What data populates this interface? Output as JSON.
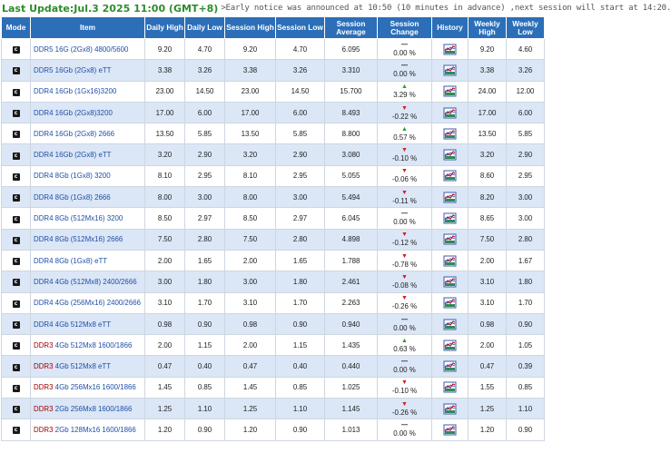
{
  "header": {
    "last_update": "Last Update:Jul.3 2025 11:00 (GMT+8)",
    "notice": ">Early notice was announced at 10:50 (10 minutes in advance) ,next session will start at 14:20."
  },
  "columns": [
    "Mode",
    "Item",
    "Daily High",
    "Daily Low",
    "Session High",
    "Session Low",
    "Session Average",
    "Session Change",
    "History",
    "Weekly High",
    "Weekly Low"
  ],
  "icons": {
    "mode": "c-icon",
    "history": "chart-icon"
  },
  "colors": {
    "header_bg": "#2c6fb8",
    "row_alt": "#dbe6f6",
    "up": "#2e9b2e",
    "down": "#d61f1f",
    "title": "#2e8b2e"
  },
  "rows": [
    {
      "mark": "",
      "item": "DDR5 16G (2Gx8) 4800/5600",
      "daily_high": "9.20",
      "daily_low": "4.70",
      "session_high": "9.20",
      "session_low": "4.70",
      "session_avg": "6.095",
      "dir": "eq",
      "change": "0.00 %",
      "weekly_high": "9.20",
      "weekly_low": "4.60"
    },
    {
      "mark": "",
      "item": "DDR5 16Gb (2Gx8) eTT",
      "daily_high": "3.38",
      "daily_low": "3.26",
      "session_high": "3.38",
      "session_low": "3.26",
      "session_avg": "3.310",
      "dir": "eq",
      "change": "0.00 %",
      "weekly_high": "3.38",
      "weekly_low": "3.26"
    },
    {
      "mark": "",
      "item": "DDR4 16Gb (1Gx16)3200",
      "daily_high": "23.00",
      "daily_low": "14.50",
      "session_high": "23.00",
      "session_low": "14.50",
      "session_avg": "15.700",
      "dir": "up",
      "change": "3.29 %",
      "weekly_high": "24.00",
      "weekly_low": "12.00"
    },
    {
      "mark": "",
      "item": "DDR4 16Gb (2Gx8)3200",
      "daily_high": "17.00",
      "daily_low": "6.00",
      "session_high": "17.00",
      "session_low": "6.00",
      "session_avg": "8.493",
      "dir": "dn",
      "change": "-0.22 %",
      "weekly_high": "17.00",
      "weekly_low": "6.00"
    },
    {
      "mark": "",
      "item": "DDR4 16Gb (2Gx8) 2666",
      "daily_high": "13.50",
      "daily_low": "5.85",
      "session_high": "13.50",
      "session_low": "5.85",
      "session_avg": "8.800",
      "dir": "up",
      "change": "0.57 %",
      "weekly_high": "13.50",
      "weekly_low": "5.85"
    },
    {
      "mark": "",
      "item": "DDR4 16Gb (2Gx8) eTT",
      "daily_high": "3.20",
      "daily_low": "2.90",
      "session_high": "3.20",
      "session_low": "2.90",
      "session_avg": "3.080",
      "dir": "dn",
      "change": "-0.10 %",
      "weekly_high": "3.20",
      "weekly_low": "2.90"
    },
    {
      "mark": "",
      "item": "DDR4 8Gb (1Gx8) 3200",
      "daily_high": "8.10",
      "daily_low": "2.95",
      "session_high": "8.10",
      "session_low": "2.95",
      "session_avg": "5.055",
      "dir": "dn",
      "change": "-0.06 %",
      "weekly_high": "8.60",
      "weekly_low": "2.95"
    },
    {
      "mark": "",
      "item": "DDR4 8Gb (1Gx8) 2666",
      "daily_high": "8.00",
      "daily_low": "3.00",
      "session_high": "8.00",
      "session_low": "3.00",
      "session_avg": "5.494",
      "dir": "dn",
      "change": "-0.11 %",
      "weekly_high": "8.20",
      "weekly_low": "3.00"
    },
    {
      "mark": "",
      "item": "DDR4 8Gb (512Mx16) 3200",
      "daily_high": "8.50",
      "daily_low": "2.97",
      "session_high": "8.50",
      "session_low": "2.97",
      "session_avg": "6.045",
      "dir": "eq",
      "change": "0.00 %",
      "weekly_high": "8.65",
      "weekly_low": "3.00"
    },
    {
      "mark": "",
      "item": "DDR4 8Gb (512Mx16) 2666",
      "daily_high": "7.50",
      "daily_low": "2.80",
      "session_high": "7.50",
      "session_low": "2.80",
      "session_avg": "4.898",
      "dir": "dn",
      "change": "-0.12 %",
      "weekly_high": "7.50",
      "weekly_low": "2.80"
    },
    {
      "mark": "",
      "item": "DDR4 8Gb (1Gx8) eTT",
      "daily_high": "2.00",
      "daily_low": "1.65",
      "session_high": "2.00",
      "session_low": "1.65",
      "session_avg": "1.788",
      "dir": "dn",
      "change": "-0.78 %",
      "weekly_high": "2.00",
      "weekly_low": "1.67"
    },
    {
      "mark": "",
      "item": "DDR4 4Gb (512Mx8) 2400/2666",
      "daily_high": "3.00",
      "daily_low": "1.80",
      "session_high": "3.00",
      "session_low": "1.80",
      "session_avg": "2.461",
      "dir": "dn",
      "change": "-0.08 %",
      "weekly_high": "3.10",
      "weekly_low": "1.80"
    },
    {
      "mark": "",
      "item": "DDR4 4Gb (256Mx16) 2400/2666",
      "daily_high": "3.10",
      "daily_low": "1.70",
      "session_high": "3.10",
      "session_low": "1.70",
      "session_avg": "2.263",
      "dir": "dn",
      "change": "-0.26 %",
      "weekly_high": "3.10",
      "weekly_low": "1.70"
    },
    {
      "mark": "",
      "item": "DDR4 4Gb 512Mx8 eTT",
      "daily_high": "0.98",
      "daily_low": "0.90",
      "session_high": "0.98",
      "session_low": "0.90",
      "session_avg": "0.940",
      "dir": "eq",
      "change": "0.00 %",
      "weekly_high": "0.98",
      "weekly_low": "0.90"
    },
    {
      "mark": "DDR3",
      "item": " 4Gb 512Mx8 1600/1866",
      "daily_high": "2.00",
      "daily_low": "1.15",
      "session_high": "2.00",
      "session_low": "1.15",
      "session_avg": "1.435",
      "dir": "up",
      "change": "0.63 %",
      "weekly_high": "2.00",
      "weekly_low": "1.05"
    },
    {
      "mark": "DDR3",
      "item": " 4Gb 512Mx8 eTT",
      "daily_high": "0.47",
      "daily_low": "0.40",
      "session_high": "0.47",
      "session_low": "0.40",
      "session_avg": "0.440",
      "dir": "eq",
      "change": "0.00 %",
      "weekly_high": "0.47",
      "weekly_low": "0.39"
    },
    {
      "mark": "DDR3",
      "item": " 4Gb 256Mx16 1600/1866",
      "daily_high": "1.45",
      "daily_low": "0.85",
      "session_high": "1.45",
      "session_low": "0.85",
      "session_avg": "1.025",
      "dir": "dn",
      "change": "-0.10 %",
      "weekly_high": "1.55",
      "weekly_low": "0.85"
    },
    {
      "mark": "DDR3",
      "item": " 2Gb 256Mx8 1600/1866",
      "daily_high": "1.25",
      "daily_low": "1.10",
      "session_high": "1.25",
      "session_low": "1.10",
      "session_avg": "1.145",
      "dir": "dn",
      "change": "-0.26 %",
      "weekly_high": "1.25",
      "weekly_low": "1.10"
    },
    {
      "mark": "DDR3",
      "item": " 2Gb 128Mx16 1600/1866",
      "daily_high": "1.20",
      "daily_low": "0.90",
      "session_high": "1.20",
      "session_low": "0.90",
      "session_avg": "1.013",
      "dir": "eq",
      "change": "0.00 %",
      "weekly_high": "1.20",
      "weekly_low": "0.90"
    }
  ]
}
